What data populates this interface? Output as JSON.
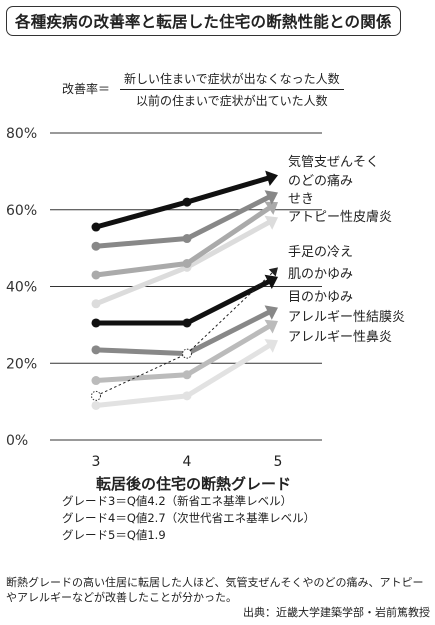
{
  "title": "各種疾病の改善率と転居した住宅の断熱性能との関係",
  "formula": {
    "lhs": "改善率＝",
    "numerator": "新しい住まいで症状が出なくなった人数",
    "denominator": "以前の住まいで症状が出ていた人数"
  },
  "chart_data": {
    "type": "line",
    "categories": [
      "3",
      "4",
      "5"
    ],
    "x_positions": [
      3,
      4,
      5
    ],
    "xlabel": "転居後の住宅の断熱グレード",
    "ylim": [
      0,
      80
    ],
    "yticks": [
      0,
      20,
      40,
      60,
      80
    ],
    "ytick_labels": [
      "0%",
      "20%",
      "40%",
      "60%",
      "80%"
    ],
    "grid": true,
    "series": [
      {
        "name": "気管支ぜんそく",
        "color": "#111111",
        "dash": false,
        "values": [
          55.5,
          62,
          69
        ]
      },
      {
        "name": "のどの痛み",
        "color": "#888888",
        "dash": false,
        "values": [
          50.5,
          52.5,
          64.5
        ]
      },
      {
        "name": "せき",
        "color": "#aaaaaa",
        "dash": false,
        "values": [
          43,
          46,
          62
        ]
      },
      {
        "name": "アトピー性皮膚炎",
        "color": "#dcdcdc",
        "dash": false,
        "values": [
          35.5,
          45,
          58
        ]
      },
      {
        "name": "手足の冷え",
        "color": "#222222",
        "dash": true,
        "values": [
          11.5,
          22.5,
          45
        ]
      },
      {
        "name": "肌のかゆみ",
        "color": "#111111",
        "dash": false,
        "values": [
          30.5,
          30.5,
          42.5
        ]
      },
      {
        "name": "目のかゆみ",
        "color": "#888888",
        "dash": false,
        "values": [
          23.5,
          22.5,
          34.5
        ]
      },
      {
        "name": "アレルギー性結膜炎",
        "color": "#bbbbbb",
        "dash": false,
        "values": [
          15.5,
          17,
          31
        ]
      },
      {
        "name": "アレルギー性鼻炎",
        "color": "#e2e2e2",
        "dash": false,
        "values": [
          9,
          11.5,
          26
        ]
      }
    ]
  },
  "grades": [
    "グレード3＝Q値4.2（新省エネ基準レベル）",
    "グレード4＝Q値2.7（次世代省エネ基準レベル）",
    "グレード5＝Q値1.9"
  ],
  "note": {
    "text": "断熱グレードの高い住居に転居した人ほど、気管支ぜんそくやのどの痛み、アトピーやアレルギーなどが改善したことが分かった。",
    "source": "出典：近畿大学建築学部・岩前篤教授"
  }
}
